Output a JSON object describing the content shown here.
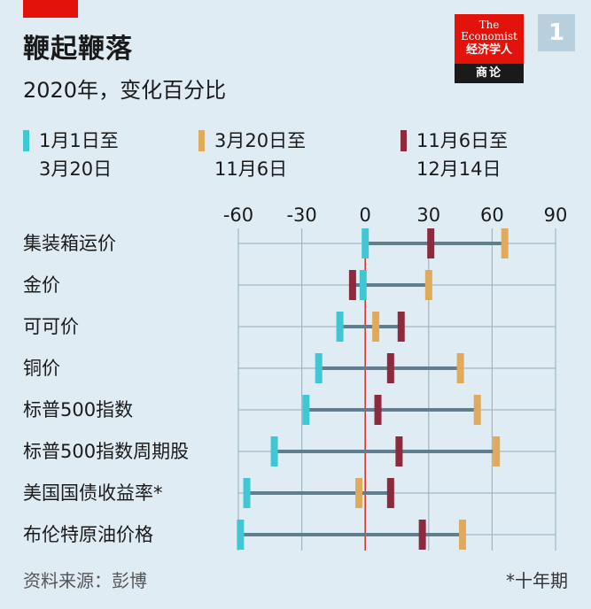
{
  "title": "鞭起鞭落",
  "subtitle": "2020年，变化百分比",
  "logo": {
    "line1": "The",
    "line2": "Economist",
    "line3": "经济学人",
    "line4": "商论"
  },
  "badge": "1",
  "legend": [
    {
      "label1": "1月1日至",
      "label2": "3月20日",
      "color": "#3fc8d4"
    },
    {
      "label1": "3月20日至",
      "label2": "11月6日",
      "color": "#e0aa5c"
    },
    {
      "label1": "11月6日至",
      "label2": "12月14日",
      "color": "#8e2a3d"
    }
  ],
  "source": "资料来源：彭博",
  "footnote": "*十年期",
  "colors": {
    "jan_mar": "#3fc8d4",
    "mar_nov": "#e0aa5c",
    "nov_dec": "#8e2a3d",
    "bar": "#5f7f8f",
    "zero": "#d42a2a"
  },
  "chart_data": {
    "type": "dot-range",
    "xlim": [
      -60,
      90
    ],
    "xticks": [
      "-60",
      "-30",
      "0",
      "30",
      "60",
      "90"
    ],
    "categories": [
      "集装箱运价",
      "金价",
      "可可价",
      "铜价",
      "标普500指数",
      "标普500指数周期股",
      "美国国债收益率*",
      "布伦特原油价格"
    ],
    "series": [
      {
        "name": "1月1日至3月20日",
        "values": [
          0,
          -1,
          -12,
          -22,
          -28,
          -43,
          -56,
          -59
        ]
      },
      {
        "name": "3月20日至11月6日",
        "values": [
          66,
          30,
          5,
          45,
          53,
          62,
          -3,
          46
        ]
      },
      {
        "name": "11月6日至12月14日",
        "values": [
          31,
          -6,
          17,
          12,
          6,
          16,
          12,
          27
        ]
      }
    ]
  }
}
